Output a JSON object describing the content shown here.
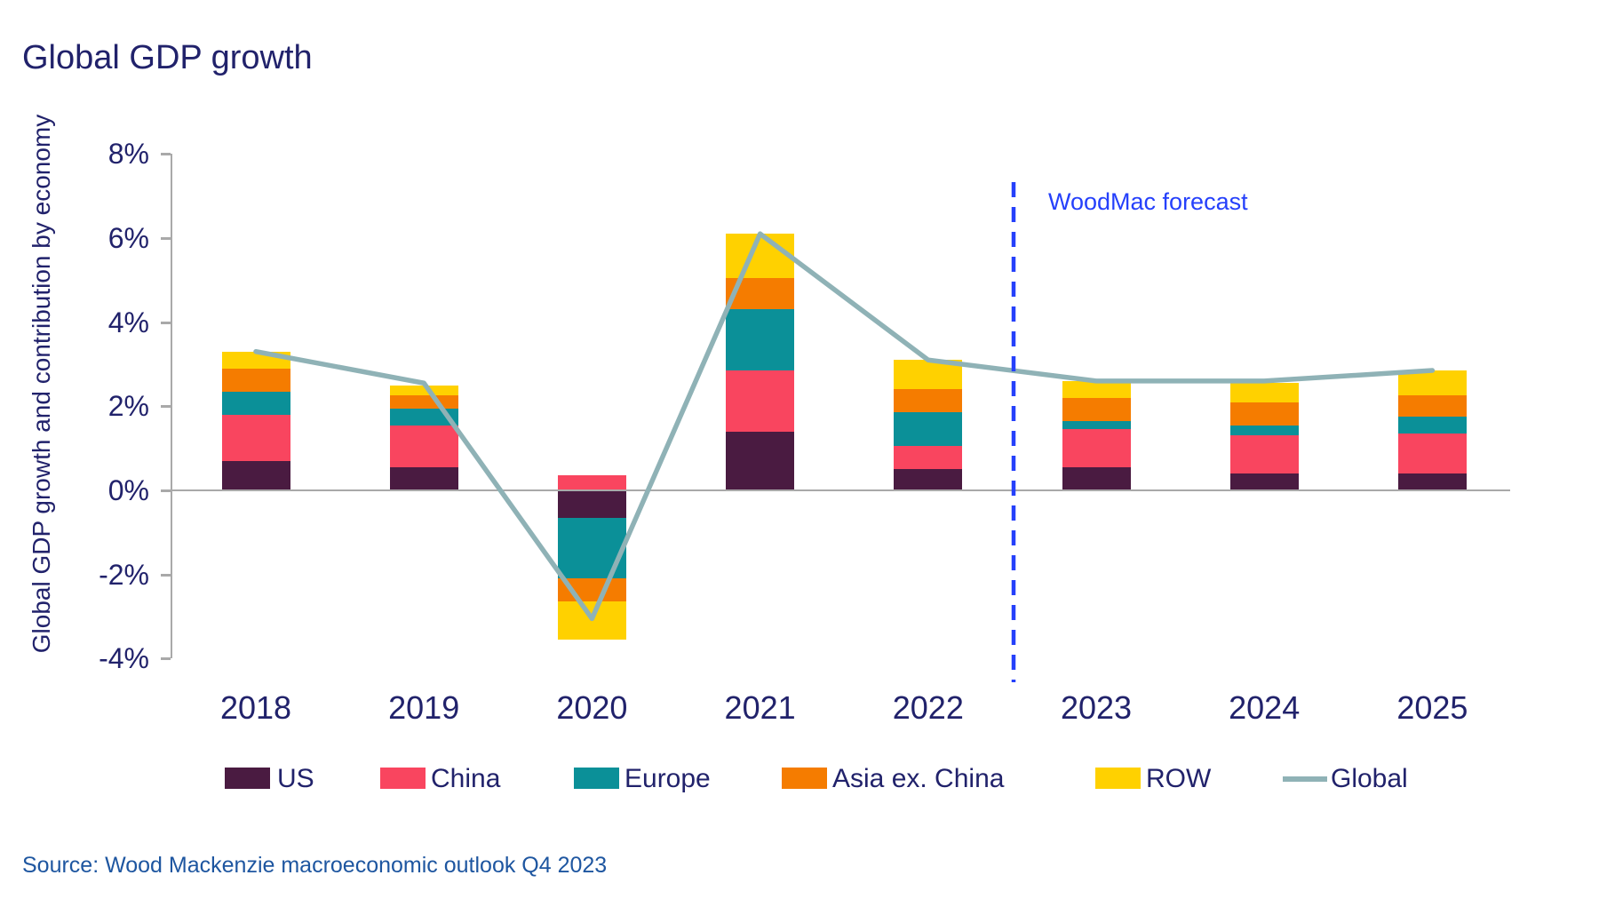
{
  "title": "Global GDP growth",
  "source": "Source: Wood Mackenzie macroeconomic outlook Q4 2023",
  "forecast_label": "WoodMac forecast",
  "colors": {
    "title_text": "#21226B",
    "axis_text": "#21226B",
    "source_text": "#1E56A0",
    "forecast_blue": "#2540FB",
    "axis_gray": "#A9A9A9",
    "global_line": "#8FB2B6"
  },
  "chart_data": {
    "type": "bar",
    "stacked": true,
    "title": "Global GDP growth",
    "ylabel": "Global GDP growth and contribution by economy",
    "xlabel": "",
    "categories": [
      "2018",
      "2019",
      "2020",
      "2021",
      "2022",
      "2023",
      "2024",
      "2025"
    ],
    "series": [
      {
        "name": "US",
        "color": "#4A1B41",
        "values": [
          0.7,
          0.55,
          -0.65,
          1.4,
          0.5,
          0.55,
          0.4,
          0.4
        ]
      },
      {
        "name": "China",
        "color": "#F9455F",
        "values": [
          1.1,
          1.0,
          0.35,
          1.45,
          0.55,
          0.9,
          0.9,
          0.95
        ]
      },
      {
        "name": "Europe",
        "color": "#0B9098",
        "values": [
          0.55,
          0.4,
          -1.45,
          1.45,
          0.8,
          0.2,
          0.25,
          0.4
        ]
      },
      {
        "name": "Asia ex. China",
        "color": "#F57C00",
        "values": [
          0.55,
          0.3,
          -0.55,
          0.75,
          0.55,
          0.55,
          0.55,
          0.5
        ]
      },
      {
        "name": "ROW",
        "color": "#FFD100",
        "values": [
          0.4,
          0.25,
          -0.9,
          1.05,
          0.7,
          0.4,
          0.45,
          0.6
        ]
      }
    ],
    "line_series": {
      "name": "Global",
      "color": "#8FB2B6",
      "values": [
        3.3,
        2.55,
        -3.05,
        6.1,
        3.1,
        2.6,
        2.6,
        2.85
      ]
    },
    "yticks": [
      "8%",
      "6%",
      "4%",
      "2%",
      "0%",
      "-2%",
      "-4%"
    ],
    "ytick_values": [
      8,
      6,
      4,
      2,
      0,
      -2,
      -4
    ],
    "ylim": [
      -4,
      8
    ],
    "grid": false,
    "legend_position": "bottom",
    "forecast_divider_after": "2022"
  }
}
